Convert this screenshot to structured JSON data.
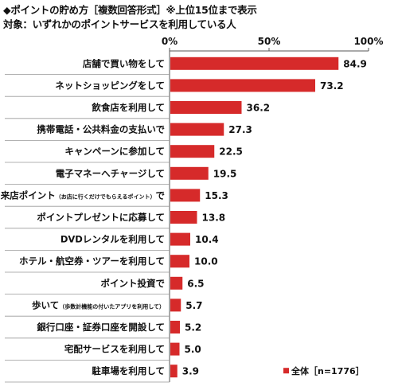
{
  "header": {
    "title": "◆ポイントの貯め方［複数回答形式］※上位15位まで表示",
    "subtitle": "対象：いずれかのポイントサービスを利用している人"
  },
  "colors": {
    "bar": "#d62a2a",
    "axis": "#555555",
    "separator": "#999999"
  },
  "chart_data": {
    "type": "bar",
    "orientation": "horizontal",
    "title": "◆ポイントの貯め方［複数回答形式］※上位15位まで表示",
    "subtitle": "対象：いずれかのポイントサービスを利用している人",
    "categories": [
      "店舗で買い物をして",
      "ネットショッピングをして",
      "飲食店を利用して",
      "携帯電話・公共料金の支払いで",
      "キャンペーンに参加して",
      "電子マネーへチャージして",
      "来店ポイント（お店に行くだけでもらえるポイント）で",
      "ポイントプレゼントに応募して",
      "DVDレンタルを利用して",
      "ホテル・航空券・ツアーを利用して",
      "ポイント投資で",
      "歩いて（歩数計機能の付いたアプリを利用して）",
      "銀行口座・証券口座を開設して",
      "宅配サービスを利用して",
      "駐車場を利用して"
    ],
    "category_labels": [
      {
        "main": "店舗で買い物をして",
        "note": "",
        "tail": ""
      },
      {
        "main": "ネットショッピングをして",
        "note": "",
        "tail": ""
      },
      {
        "main": "飲食店を利用して",
        "note": "",
        "tail": ""
      },
      {
        "main": "携帯電話・公共料金の支払いで",
        "note": "",
        "tail": ""
      },
      {
        "main": "キャンペーンに参加して",
        "note": "",
        "tail": ""
      },
      {
        "main": "電子マネーへチャージして",
        "note": "",
        "tail": ""
      },
      {
        "main": "来店ポイント",
        "note": "（お店に行くだけでもらえるポイント）",
        "tail": "で"
      },
      {
        "main": "ポイントプレゼントに応募して",
        "note": "",
        "tail": ""
      },
      {
        "main": "DVDレンタルを利用して",
        "note": "",
        "tail": ""
      },
      {
        "main": "ホテル・航空券・ツアーを利用して",
        "note": "",
        "tail": ""
      },
      {
        "main": "ポイント投資で",
        "note": "",
        "tail": ""
      },
      {
        "main": "歩いて",
        "note": "（歩数計機能の付いたアプリを利用して）",
        "tail": ""
      },
      {
        "main": "銀行口座・証券口座を開設して",
        "note": "",
        "tail": ""
      },
      {
        "main": "宅配サービスを利用して",
        "note": "",
        "tail": ""
      },
      {
        "main": "駐車場を利用して",
        "note": "",
        "tail": ""
      }
    ],
    "series": [
      {
        "name": "全体［n=1776］",
        "values": [
          84.9,
          73.2,
          36.2,
          27.3,
          22.5,
          19.5,
          15.3,
          13.8,
          10.4,
          10.0,
          6.5,
          5.7,
          5.2,
          5.0,
          3.9
        ],
        "value_labels": [
          "84.9",
          "73.2",
          "36.2",
          "27.3",
          "22.5",
          "19.5",
          "15.3",
          "13.8",
          "10.4",
          "10.0",
          "6.5",
          "5.7",
          "5.2",
          "5.0",
          "3.9"
        ]
      }
    ],
    "x_ticks": [
      "0%",
      "50%",
      "100%"
    ],
    "xlim": [
      0,
      100
    ],
    "grid": false,
    "legend": {
      "position": "bottom-right",
      "label": "全体［n=1776］"
    }
  }
}
